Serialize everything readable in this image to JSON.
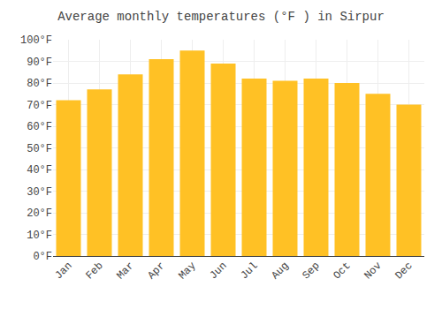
{
  "chart_data": {
    "type": "bar",
    "title": "Average monthly temperatures (°F ) in Sirpur",
    "categories": [
      "Jan",
      "Feb",
      "Mar",
      "Apr",
      "May",
      "Jun",
      "Jul",
      "Aug",
      "Sep",
      "Oct",
      "Nov",
      "Dec"
    ],
    "values": [
      72,
      77,
      84,
      91,
      95,
      89,
      82,
      81,
      82,
      80,
      75,
      70
    ],
    "color": "#FFC125",
    "ylim": [
      0,
      100
    ],
    "yticks": [
      {
        "value": 0,
        "label": "0°F"
      },
      {
        "value": 10,
        "label": "10°F"
      },
      {
        "value": 20,
        "label": "20°F"
      },
      {
        "value": 30,
        "label": "30°F"
      },
      {
        "value": 40,
        "label": "40°F"
      },
      {
        "value": 50,
        "label": "50°F"
      },
      {
        "value": 60,
        "label": "60°F"
      },
      {
        "value": 70,
        "label": "70°F"
      },
      {
        "value": 80,
        "label": "80°F"
      },
      {
        "value": 90,
        "label": "90°F"
      },
      {
        "value": 100,
        "label": "100°F"
      }
    ],
    "grid": true
  }
}
